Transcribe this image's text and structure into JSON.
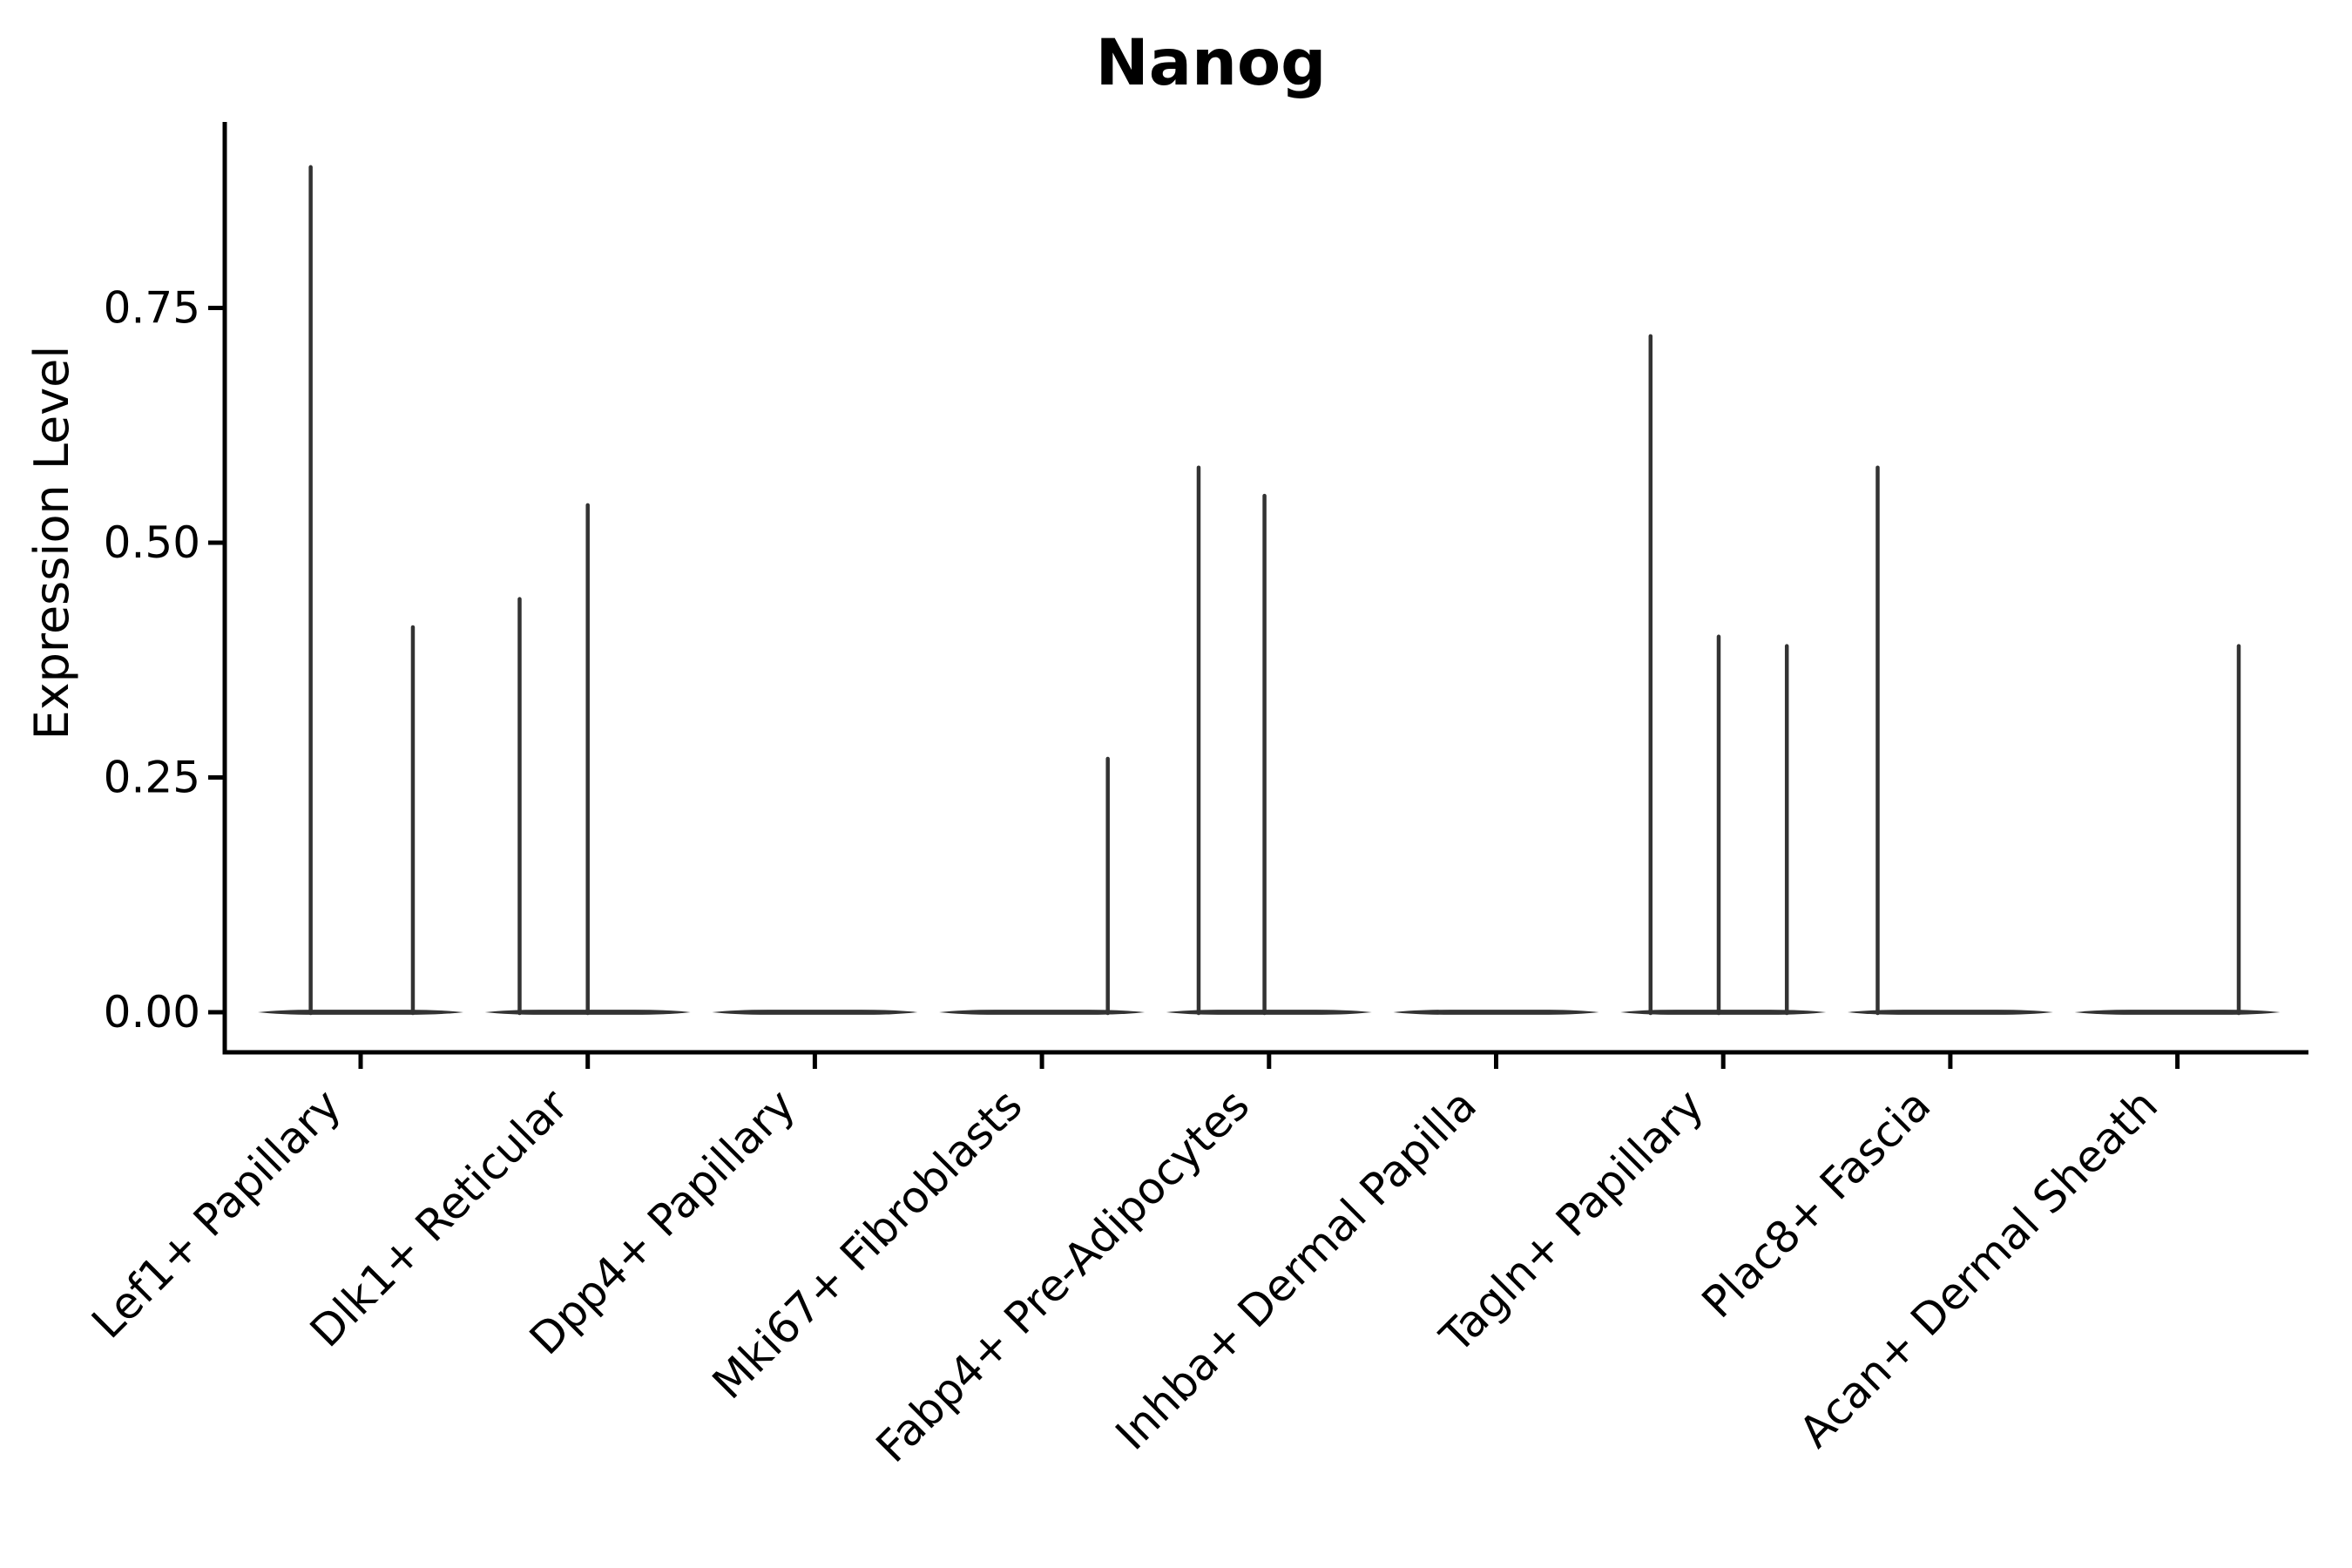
{
  "chart_data": {
    "type": "violin",
    "title": "Nanog",
    "xlabel": "",
    "ylabel": "Expression Level",
    "ylim": [
      0,
      0.948
    ],
    "ytick_values": [
      0.0,
      0.25,
      0.5,
      0.75
    ],
    "ytick_labels": [
      "0.00",
      "0.25",
      "0.50",
      "0.75"
    ],
    "grid": false,
    "legend": "none",
    "categories": [
      "Lef1+ Papillary",
      "Dlk1+ Reticular",
      "Dpp4+ Papillary",
      "Mki67+ Fibroblasts",
      "Fabp4+ Pre-Adipocytes",
      "Inhba+ Dermal Papilla",
      "Tagln+ Papillary",
      "Plac8+ Fascia",
      "Acan+ Dermal Sheath"
    ],
    "series": [
      {
        "name": "Lef1+ Papillary",
        "baseline_value": 0,
        "spikes": [
          {
            "offset": -0.22,
            "value": 0.9
          },
          {
            "offset": 0.23,
            "value": 0.41
          }
        ]
      },
      {
        "name": "Dlk1+ Reticular",
        "baseline_value": 0,
        "spikes": [
          {
            "offset": -0.3,
            "value": 0.44
          },
          {
            "offset": 0.0,
            "value": 0.54
          }
        ]
      },
      {
        "name": "Dpp4+ Papillary",
        "baseline_value": 0,
        "spikes": []
      },
      {
        "name": "Mki67+ Fibroblasts",
        "baseline_value": 0,
        "spikes": [
          {
            "offset": 0.29,
            "value": 0.27
          }
        ]
      },
      {
        "name": "Fabp4+ Pre-Adipocytes",
        "baseline_value": 0,
        "spikes": [
          {
            "offset": -0.31,
            "value": 0.58
          },
          {
            "offset": -0.02,
            "value": 0.55
          }
        ]
      },
      {
        "name": "Inhba+ Dermal Papilla",
        "baseline_value": 0,
        "spikes": []
      },
      {
        "name": "Tagln+ Papillary",
        "baseline_value": 0,
        "spikes": [
          {
            "offset": -0.32,
            "value": 0.72
          },
          {
            "offset": -0.02,
            "value": 0.4
          },
          {
            "offset": 0.28,
            "value": 0.39
          }
        ]
      },
      {
        "name": "Plac8+ Fascia",
        "baseline_value": 0,
        "spikes": [
          {
            "offset": -0.32,
            "value": 0.58
          }
        ]
      },
      {
        "name": "Acan+ Dermal Sheath",
        "baseline_value": 0,
        "spikes": [
          {
            "offset": 0.27,
            "value": 0.39
          }
        ]
      }
    ],
    "colors": {
      "background": "#ffffff",
      "axis": "#000000",
      "violin_line": "#333333",
      "text": "#000000"
    }
  }
}
